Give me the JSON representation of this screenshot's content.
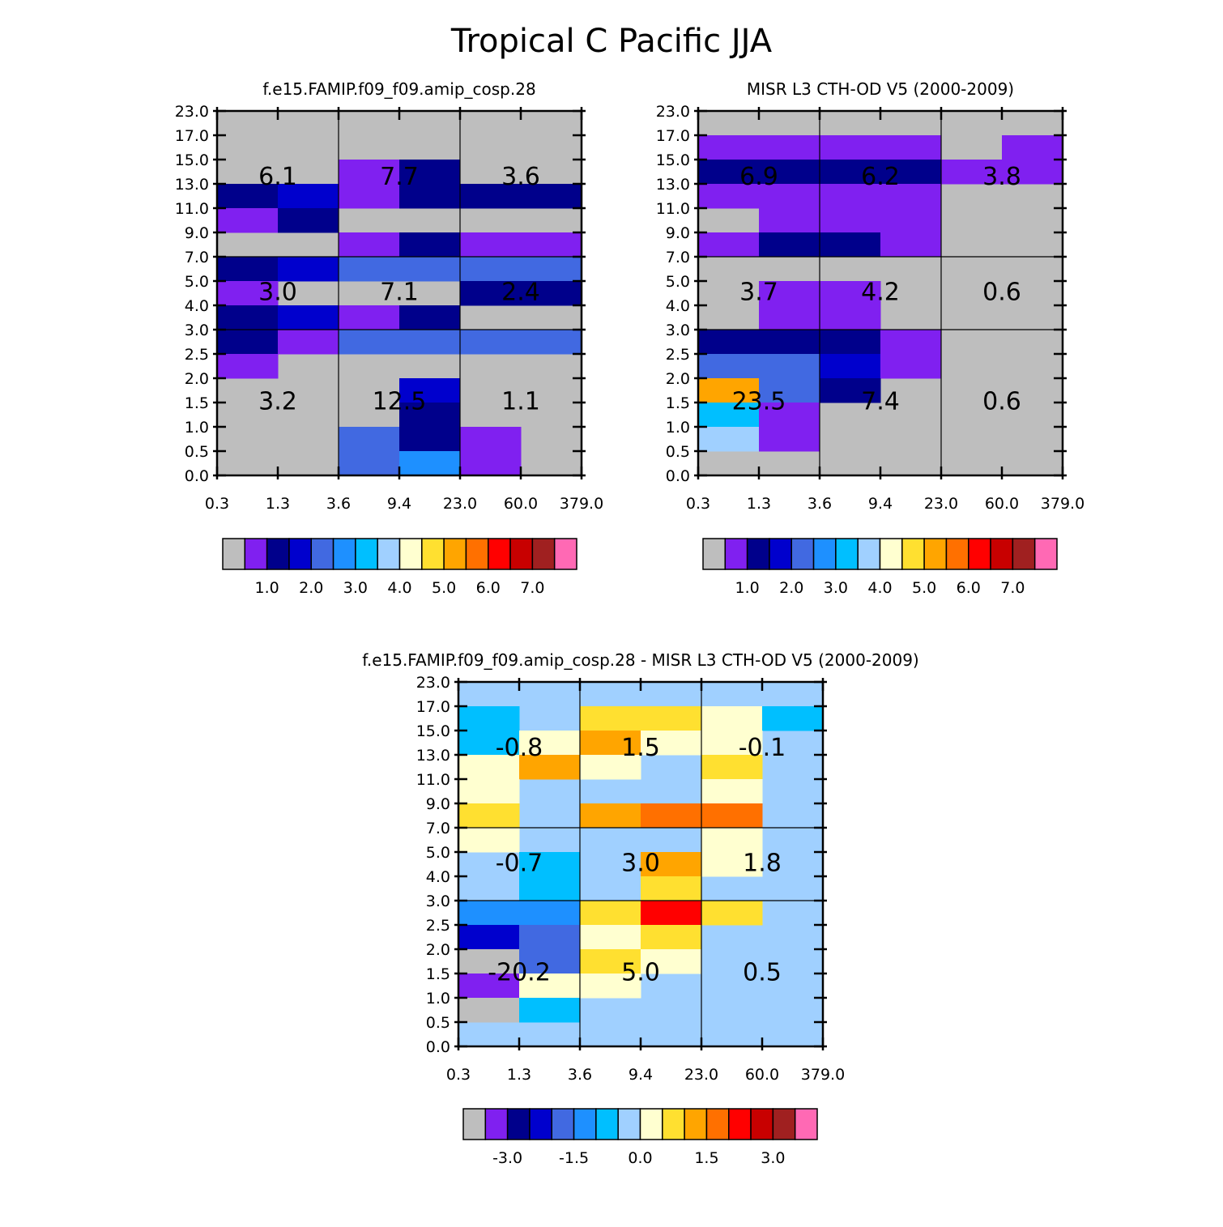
{
  "title": "Tropical C Pacific JJA",
  "bg_color": "#bebebe",
  "y_ticks": [
    "0.0",
    "0.5",
    "1.0",
    "1.5",
    "2.0",
    "2.5",
    "3.0",
    "4.0",
    "5.0",
    "7.0",
    "9.0",
    "11.0",
    "13.0",
    "15.0",
    "17.0",
    "23.0"
  ],
  "x_ticks": [
    "0.3",
    "1.3",
    "3.6",
    "9.4",
    "23.0",
    "60.0",
    "379.0"
  ],
  "chart_data": [
    {
      "type": "heatmap",
      "title": "f.e15.FAMIP.f09_f09.amip_cosp.28",
      "xlabel": "",
      "ylabel": "",
      "colorbar": {
        "colors": [
          "#bebebe",
          "#8020f0",
          "#00008b",
          "#0000cd",
          "#4169e1",
          "#1e90ff",
          "#00bfff",
          "#a0d0ff",
          "#ffffd0",
          "#ffe030",
          "#ffa500",
          "#ff7000",
          "#ff0000",
          "#c80000",
          "#a02020",
          "#ff69b4"
        ],
        "labels": [
          "1.0",
          "2.0",
          "3.0",
          "4.0",
          "5.0",
          "6.0",
          "7.0"
        ]
      },
      "cells": [
        [
          2,
          12,
          1
        ],
        [
          3,
          12,
          2
        ],
        [
          0,
          11,
          2
        ],
        [
          1,
          11,
          3
        ],
        [
          2,
          11,
          1
        ],
        [
          3,
          11,
          2
        ],
        [
          4,
          11,
          2
        ],
        [
          5,
          11,
          2
        ],
        [
          0,
          10,
          1
        ],
        [
          1,
          10,
          2
        ],
        [
          2,
          9,
          1
        ],
        [
          3,
          9,
          2
        ],
        [
          4,
          9,
          1
        ],
        [
          5,
          9,
          1
        ],
        [
          0,
          8,
          2
        ],
        [
          1,
          8,
          3
        ],
        [
          2,
          8,
          4
        ],
        [
          3,
          8,
          4
        ],
        [
          4,
          8,
          4
        ],
        [
          5,
          8,
          4
        ],
        [
          0,
          7,
          1
        ],
        [
          4,
          7,
          2
        ],
        [
          5,
          7,
          2
        ],
        [
          0,
          6,
          2
        ],
        [
          1,
          6,
          3
        ],
        [
          2,
          6,
          1
        ],
        [
          3,
          6,
          2
        ],
        [
          0,
          5,
          2
        ],
        [
          1,
          5,
          1
        ],
        [
          2,
          5,
          4
        ],
        [
          3,
          5,
          4
        ],
        [
          4,
          5,
          4
        ],
        [
          5,
          5,
          4
        ],
        [
          0,
          4,
          1
        ],
        [
          3,
          3,
          3
        ],
        [
          3,
          2,
          2
        ],
        [
          2,
          1,
          4
        ],
        [
          3,
          1,
          2
        ],
        [
          4,
          1,
          1
        ],
        [
          2,
          0,
          4
        ],
        [
          3,
          0,
          5
        ],
        [
          4,
          0,
          1
        ]
      ],
      "cell_map": "row index (0 = top) then column index, each cell = [row, col, color_index]",
      "labels": [
        {
          "text": "6.1",
          "col": 0,
          "row": 0
        },
        {
          "text": "7.7",
          "col": 1,
          "row": 0
        },
        {
          "text": "3.6",
          "col": 2,
          "row": 0
        },
        {
          "text": "3.0",
          "col": 0,
          "row": 1
        },
        {
          "text": "7.1",
          "col": 1,
          "row": 1
        },
        {
          "text": "2.4",
          "col": 2,
          "row": 1
        },
        {
          "text": "3.2",
          "col": 0,
          "row": 2
        },
        {
          "text": "12.5",
          "col": 1,
          "row": 2
        },
        {
          "text": "1.1",
          "col": 2,
          "row": 2
        }
      ]
    },
    {
      "type": "heatmap",
      "title": "MISR L3 CTH-OD V5 (2000-2009)",
      "xlabel": "",
      "ylabel": "",
      "colorbar": {
        "colors": [
          "#bebebe",
          "#8020f0",
          "#00008b",
          "#0000cd",
          "#4169e1",
          "#1e90ff",
          "#00bfff",
          "#a0d0ff",
          "#ffffd0",
          "#ffe030",
          "#ffa500",
          "#ff7000",
          "#ff0000",
          "#c80000",
          "#a02020",
          "#ff69b4"
        ],
        "labels": [
          "1.0",
          "2.0",
          "3.0",
          "4.0",
          "5.0",
          "6.0",
          "7.0"
        ]
      },
      "cells": [
        [
          0,
          13,
          1
        ],
        [
          1,
          13,
          1
        ],
        [
          2,
          13,
          1
        ],
        [
          3,
          13,
          1
        ],
        [
          5,
          13,
          1
        ],
        [
          0,
          12,
          2
        ],
        [
          1,
          12,
          2
        ],
        [
          2,
          12,
          2
        ],
        [
          3,
          12,
          2
        ],
        [
          4,
          12,
          1
        ],
        [
          5,
          12,
          1
        ],
        [
          0,
          11,
          1
        ],
        [
          1,
          11,
          1
        ],
        [
          2,
          11,
          1
        ],
        [
          3,
          11,
          1
        ],
        [
          1,
          10,
          1
        ],
        [
          2,
          10,
          1
        ],
        [
          3,
          10,
          1
        ],
        [
          0,
          9,
          1
        ],
        [
          1,
          9,
          2
        ],
        [
          2,
          9,
          2
        ],
        [
          3,
          9,
          1
        ],
        [
          1,
          7,
          1
        ],
        [
          2,
          7,
          1
        ],
        [
          1,
          6,
          1
        ],
        [
          2,
          6,
          1
        ],
        [
          0,
          5,
          2
        ],
        [
          1,
          5,
          2
        ],
        [
          2,
          5,
          2
        ],
        [
          3,
          5,
          1
        ],
        [
          0,
          4,
          4
        ],
        [
          1,
          4,
          4
        ],
        [
          2,
          4,
          3
        ],
        [
          3,
          4,
          1
        ],
        [
          0,
          3,
          10
        ],
        [
          1,
          3,
          4
        ],
        [
          2,
          3,
          2
        ],
        [
          0,
          2,
          6
        ],
        [
          1,
          2,
          1
        ],
        [
          0,
          1,
          7
        ],
        [
          1,
          1,
          1
        ]
      ],
      "cell_map": "each cell = [col, row_from_bottom, color_index]",
      "labels": [
        {
          "text": "6.9",
          "col": 0,
          "row": 0
        },
        {
          "text": "6.2",
          "col": 1,
          "row": 0
        },
        {
          "text": "3.8",
          "col": 2,
          "row": 0
        },
        {
          "text": "3.7",
          "col": 0,
          "row": 1
        },
        {
          "text": "4.2",
          "col": 1,
          "row": 1
        },
        {
          "text": "0.6",
          "col": 2,
          "row": 1
        },
        {
          "text": "23.5",
          "col": 0,
          "row": 2
        },
        {
          "text": "7.4",
          "col": 1,
          "row": 2
        },
        {
          "text": "0.6",
          "col": 2,
          "row": 2
        }
      ]
    },
    {
      "type": "heatmap",
      "title": "f.e15.FAMIP.f09_f09.amip_cosp.28 - MISR L3 CTH-OD V5 (2000-2009)",
      "xlabel": "",
      "ylabel": "",
      "base_color": "#a0d0ff",
      "colorbar": {
        "colors": [
          "#bebebe",
          "#8020f0",
          "#00008b",
          "#0000cd",
          "#4169e1",
          "#1e90ff",
          "#00bfff",
          "#a0d0ff",
          "#ffffd0",
          "#ffe030",
          "#ffa500",
          "#ff7000",
          "#ff0000",
          "#c80000",
          "#a02020",
          "#ff69b4"
        ],
        "labels": [
          "-3.0",
          "-1.5",
          "0.0",
          "1.5",
          "3.0"
        ]
      },
      "cells": [
        [
          0,
          13,
          6
        ],
        [
          2,
          13,
          9
        ],
        [
          3,
          13,
          9
        ],
        [
          4,
          13,
          8
        ],
        [
          5,
          13,
          6
        ],
        [
          0,
          12,
          6
        ],
        [
          1,
          12,
          8
        ],
        [
          2,
          12,
          10
        ],
        [
          3,
          12,
          8
        ],
        [
          4,
          12,
          8
        ],
        [
          0,
          11,
          8
        ],
        [
          1,
          11,
          10
        ],
        [
          2,
          11,
          8
        ],
        [
          4,
          11,
          9
        ],
        [
          0,
          10,
          8
        ],
        [
          4,
          10,
          8
        ],
        [
          0,
          9,
          9
        ],
        [
          2,
          9,
          10
        ],
        [
          3,
          9,
          11
        ],
        [
          4,
          9,
          11
        ],
        [
          0,
          8,
          8
        ],
        [
          4,
          8,
          8
        ],
        [
          1,
          7,
          6
        ],
        [
          3,
          7,
          10
        ],
        [
          4,
          7,
          8
        ],
        [
          1,
          6,
          6
        ],
        [
          3,
          6,
          9
        ],
        [
          0,
          5,
          5
        ],
        [
          1,
          5,
          5
        ],
        [
          2,
          5,
          9
        ],
        [
          3,
          5,
          12
        ],
        [
          4,
          5,
          9
        ],
        [
          0,
          4,
          3
        ],
        [
          1,
          4,
          4
        ],
        [
          2,
          4,
          8
        ],
        [
          3,
          4,
          9
        ],
        [
          0,
          3,
          0
        ],
        [
          1,
          3,
          4
        ],
        [
          2,
          3,
          9
        ],
        [
          3,
          3,
          8
        ],
        [
          0,
          2,
          1
        ],
        [
          1,
          2,
          8
        ],
        [
          2,
          2,
          8
        ],
        [
          0,
          1,
          0
        ],
        [
          1,
          1,
          6
        ]
      ],
      "cell_map": "each cell = [col, row_from_bottom, color_index]",
      "labels": [
        {
          "text": "-0.8",
          "col": 0,
          "row": 0
        },
        {
          "text": "1.5",
          "col": 1,
          "row": 0
        },
        {
          "text": "-0.1",
          "col": 2,
          "row": 0
        },
        {
          "text": "-0.7",
          "col": 0,
          "row": 1
        },
        {
          "text": "3.0",
          "col": 1,
          "row": 1
        },
        {
          "text": "1.8",
          "col": 2,
          "row": 1
        },
        {
          "text": "-20.2",
          "col": 0,
          "row": 2
        },
        {
          "text": "5.0",
          "col": 1,
          "row": 2
        },
        {
          "text": "0.5",
          "col": 2,
          "row": 2
        }
      ]
    }
  ]
}
